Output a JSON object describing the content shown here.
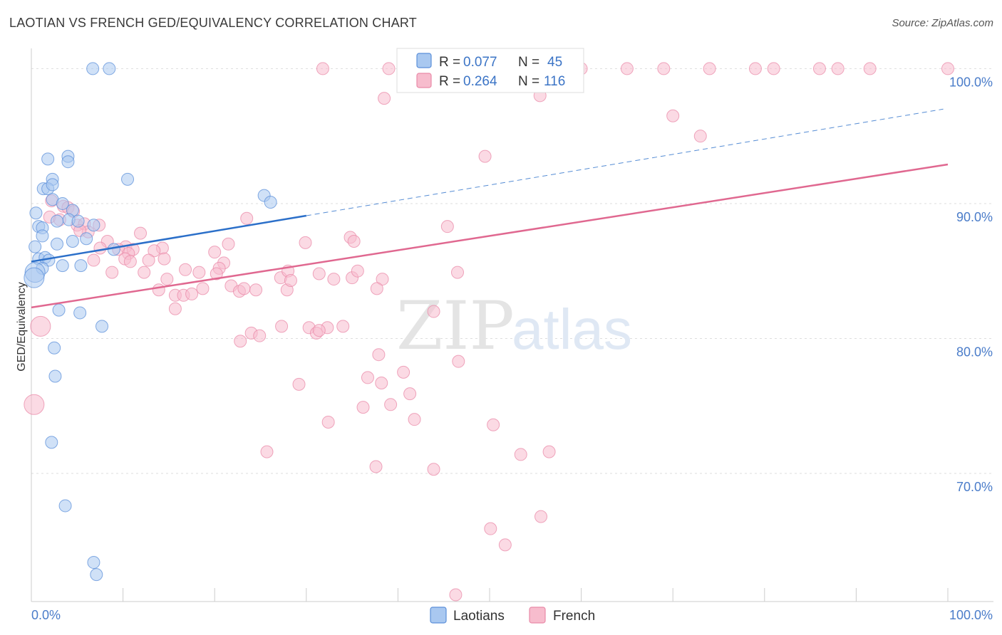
{
  "title": "LAOTIAN VS FRENCH GED/EQUIVALENCY CORRELATION CHART",
  "source": "Source: ZipAtlas.com",
  "watermark": {
    "zip": "ZIP",
    "atlas": "atlas"
  },
  "colors": {
    "laotians_fill": "#a9c8f0",
    "laotians_stroke": "#5b8fd9",
    "laotians_line": "#2b6fc9",
    "french_fill": "#f7bccd",
    "french_stroke": "#e98aa8",
    "french_line": "#e06890",
    "tick_label": "#4a7cc9",
    "grid": "#dddddd"
  },
  "legend": {
    "items": [
      {
        "r_label": "R = ",
        "r_value": "0.077",
        "n_label": "N = ",
        "n_value": "45"
      },
      {
        "r_label": "R = ",
        "r_value": "0.264",
        "n_label": "N = ",
        "n_value": "116"
      }
    ]
  },
  "chart_data": {
    "type": "scatter",
    "ylabel": "GED/Equivalency",
    "xlim": [
      0,
      100
    ],
    "ylim": [
      60.5,
      101.5
    ],
    "x_tick_labels": [
      "0.0%",
      "100.0%"
    ],
    "y_ticks": [
      {
        "value": 100,
        "label": "100.0%"
      },
      {
        "value": 90,
        "label": "90.0%"
      },
      {
        "value": 80,
        "label": "80.0%"
      },
      {
        "value": 70,
        "label": "70.0%"
      }
    ],
    "grid": "horizontal dashed",
    "legend_position": "top-center",
    "series": [
      {
        "name": "Laotians",
        "trend": {
          "x0": 0,
          "y0": 85.7,
          "x1": 30,
          "y1": 89.1,
          "dashed_to_x": 99.5,
          "dashed_to_y": 97.0
        },
        "points": [
          [
            6.7,
            100
          ],
          [
            8.5,
            100
          ],
          [
            1.8,
            93.3
          ],
          [
            4,
            93.5
          ],
          [
            4,
            93.1
          ],
          [
            2.3,
            91.8
          ],
          [
            1.3,
            91.1
          ],
          [
            1.8,
            91.1
          ],
          [
            2.3,
            91.4
          ],
          [
            10.5,
            91.8
          ],
          [
            0.5,
            89.3
          ],
          [
            2.3,
            90.3
          ],
          [
            3.4,
            90
          ],
          [
            4.5,
            89.5
          ],
          [
            0.8,
            88.3
          ],
          [
            1.2,
            88.2
          ],
          [
            2.8,
            88.7
          ],
          [
            4.1,
            88.8
          ],
          [
            5.1,
            88.7
          ],
          [
            6.8,
            88.4
          ],
          [
            1.2,
            87.6
          ],
          [
            2.8,
            87
          ],
          [
            4.5,
            87.2
          ],
          [
            6,
            87.4
          ],
          [
            0.4,
            86.8
          ],
          [
            0.8,
            85.9
          ],
          [
            1.5,
            86
          ],
          [
            1.9,
            85.8
          ],
          [
            3.4,
            85.4
          ],
          [
            5.4,
            85.4
          ],
          [
            9,
            86.6
          ],
          [
            1.2,
            85.2
          ],
          [
            0.4,
            84.9
          ],
          [
            3,
            82.1
          ],
          [
            5.3,
            81.9
          ],
          [
            7.7,
            80.9
          ],
          [
            2.5,
            79.3
          ],
          [
            2.6,
            77.2
          ],
          [
            2.2,
            72.3
          ],
          [
            3.7,
            67.6
          ],
          [
            6.8,
            63.4
          ],
          [
            7.1,
            62.5
          ],
          [
            25.4,
            90.6
          ],
          [
            26.1,
            90.1
          ],
          [
            0.3,
            84.5
          ]
        ]
      },
      {
        "name": "French",
        "trend": {
          "x0": 0,
          "y0": 82.3,
          "x1": 100,
          "y1": 92.9
        },
        "points": [
          [
            31.8,
            100
          ],
          [
            39,
            100
          ],
          [
            46,
            100
          ],
          [
            47.5,
            100
          ],
          [
            51,
            100
          ],
          [
            54,
            100
          ],
          [
            58,
            100
          ],
          [
            60,
            100
          ],
          [
            65,
            100
          ],
          [
            69,
            100
          ],
          [
            74,
            100
          ],
          [
            79,
            100
          ],
          [
            81,
            100
          ],
          [
            86,
            100
          ],
          [
            88,
            100
          ],
          [
            91.5,
            100
          ],
          [
            100,
            100
          ],
          [
            38.5,
            97.8
          ],
          [
            55.5,
            98
          ],
          [
            70,
            96.5
          ],
          [
            73,
            95
          ],
          [
            49.5,
            93.5
          ],
          [
            2.2,
            90.2
          ],
          [
            3.5,
            89.8
          ],
          [
            4,
            89.7
          ],
          [
            4.6,
            89.4
          ],
          [
            2,
            89
          ],
          [
            3.1,
            88.8
          ],
          [
            5,
            88.4
          ],
          [
            5.8,
            88.5
          ],
          [
            7.4,
            88.4
          ],
          [
            11.9,
            87.8
          ],
          [
            6.2,
            87.9
          ],
          [
            5.3,
            88
          ],
          [
            8.3,
            87.2
          ],
          [
            10.3,
            86.8
          ],
          [
            9.5,
            86.6
          ],
          [
            7.5,
            86.7
          ],
          [
            11.1,
            86.6
          ],
          [
            14.3,
            86.7
          ],
          [
            13.4,
            86.5
          ],
          [
            10.6,
            86.3
          ],
          [
            10.2,
            85.9
          ],
          [
            10.8,
            85.7
          ],
          [
            12.8,
            85.8
          ],
          [
            14.5,
            85.9
          ],
          [
            6.8,
            85.8
          ],
          [
            8.8,
            84.9
          ],
          [
            12.3,
            84.9
          ],
          [
            14.8,
            84.4
          ],
          [
            16.8,
            85.1
          ],
          [
            18.3,
            84.9
          ],
          [
            20,
            86.4
          ],
          [
            21,
            85.6
          ],
          [
            20.5,
            85.2
          ],
          [
            20.2,
            84.8
          ],
          [
            21.5,
            87
          ],
          [
            23.5,
            88.9
          ],
          [
            27.2,
            84.5
          ],
          [
            28,
            85
          ],
          [
            29.9,
            87.1
          ],
          [
            31.4,
            84.8
          ],
          [
            33,
            84.4
          ],
          [
            35,
            84.5
          ],
          [
            35.6,
            85
          ],
          [
            34.8,
            87.5
          ],
          [
            35.2,
            87.2
          ],
          [
            38.3,
            84.4
          ],
          [
            37.7,
            83.7
          ],
          [
            45.4,
            88.3
          ],
          [
            46.5,
            84.9
          ],
          [
            13.9,
            83.6
          ],
          [
            15.7,
            83.2
          ],
          [
            16.6,
            83.2
          ],
          [
            17.5,
            83.3
          ],
          [
            18.7,
            83.7
          ],
          [
            21.8,
            83.9
          ],
          [
            22.7,
            83.5
          ],
          [
            23.2,
            83.7
          ],
          [
            24.5,
            83.6
          ],
          [
            27.9,
            83.6
          ],
          [
            28.3,
            84.3
          ],
          [
            15.7,
            82.2
          ],
          [
            43.9,
            82
          ],
          [
            27.3,
            80.9
          ],
          [
            30.3,
            80.8
          ],
          [
            31.1,
            80.4
          ],
          [
            32.3,
            80.8
          ],
          [
            34,
            80.9
          ],
          [
            31.4,
            80.6
          ],
          [
            24,
            80.4
          ],
          [
            24.9,
            80.2
          ],
          [
            22.8,
            79.8
          ],
          [
            37.9,
            78.8
          ],
          [
            46.6,
            78.3
          ],
          [
            40.6,
            77.5
          ],
          [
            36.7,
            77.1
          ],
          [
            38.2,
            76.7
          ],
          [
            29.2,
            76.6
          ],
          [
            41.3,
            75.9
          ],
          [
            39.2,
            75.1
          ],
          [
            36.2,
            74.9
          ],
          [
            41.8,
            74
          ],
          [
            32.4,
            73.8
          ],
          [
            50.4,
            73.6
          ],
          [
            25.7,
            71.6
          ],
          [
            53.4,
            71.4
          ],
          [
            56.5,
            71.6
          ],
          [
            37.6,
            70.5
          ],
          [
            43.9,
            70.3
          ],
          [
            55.6,
            66.8
          ],
          [
            50.1,
            65.9
          ],
          [
            51.7,
            64.7
          ],
          [
            46.3,
            61
          ],
          [
            0.3,
            75.1
          ],
          [
            1,
            80.9
          ]
        ]
      }
    ]
  },
  "bottom_legend": [
    {
      "label": "Laotians"
    },
    {
      "label": "French"
    }
  ]
}
